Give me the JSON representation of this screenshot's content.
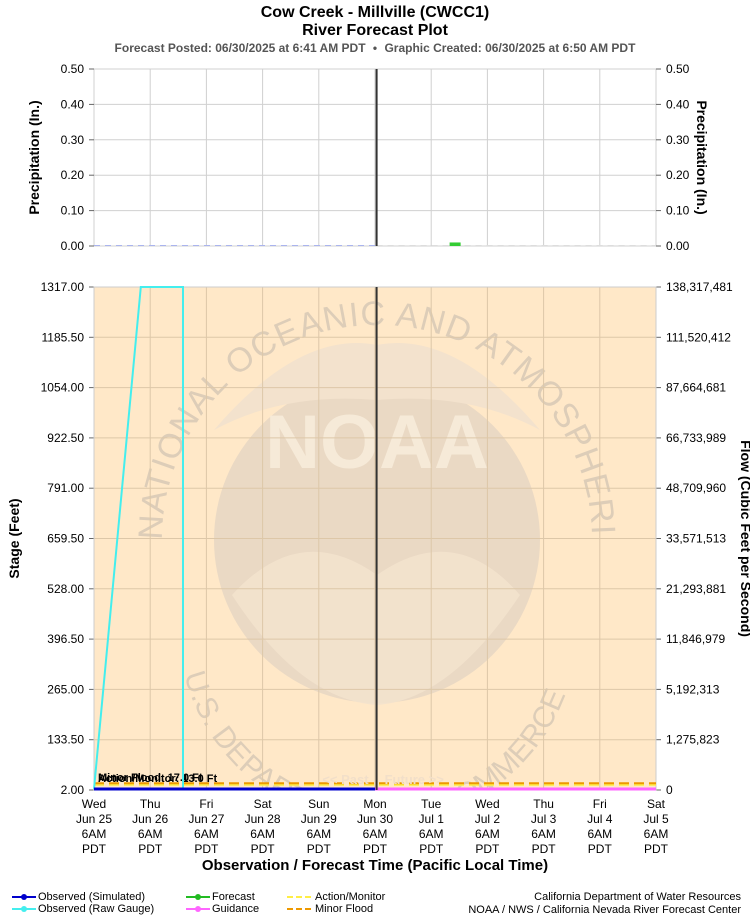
{
  "header": {
    "title": "Cow Creek - Millville (CWCC1)",
    "subtitle": "River Forecast Plot",
    "posted": "Forecast Posted: 06/30/2025 at 6:41 AM PDT",
    "created": "Graphic Created: 06/30/2025 at 6:50 AM PDT",
    "bullet": "•"
  },
  "colors": {
    "plot_bg": "#ffe8c8",
    "grid": "#d0d0d0",
    "observed_simulated": "#0000cc",
    "observed_raw": "#44eeee",
    "forecast": "#22bb22",
    "guidance": "#ff66ff",
    "action_monitor": "#ffee44",
    "minor_flood": "#ee9900",
    "now_line": "#333333",
    "watermark": "#e6d6c3"
  },
  "watermark": {
    "outer_text": "NATIONAL OCEANIC AND ATMOSPHERIC ADMINISTRATION",
    "inner_text": "U.S. DEPARTMENT OF COMMERCE",
    "logo_text": "NOAA"
  },
  "chart_data": [
    {
      "type": "bar",
      "name": "precipitation",
      "ylabel_left": "Precipitation (In.)",
      "ylabel_right": "Precipitation (In.)",
      "ylim": [
        0,
        0.5
      ],
      "yticks": [
        "0.50",
        "0.40",
        "0.30",
        "0.20",
        "0.10",
        "0.00"
      ],
      "yticks_right": [
        "0.50",
        "0.40",
        "0.30",
        "0.20",
        "0.10",
        "0.00"
      ],
      "grid": true,
      "bars": [
        {
          "x": "2025-07-01T16:00",
          "value": 0.01
        }
      ]
    },
    {
      "type": "line",
      "name": "stage-flow",
      "ylabel_left": "Stage (Feet)",
      "ylabel_right": "Flow (Cubic Feet per Second)",
      "xlabel": "Observation / Forecast Time (Pacific Local Time)",
      "ylim": [
        2.0,
        1317.0
      ],
      "yticks": [
        "1317.00",
        "1185.50",
        "1054.00",
        "922.50",
        "791.00",
        "659.50",
        "528.00",
        "396.50",
        "265.00",
        "133.50",
        "2.00"
      ],
      "yticks_right": [
        "138,317,481",
        "111,520,412",
        "87,664,681",
        "66,733,989",
        "48,709,960",
        "33,571,513",
        "21,293,881",
        "11,846,979",
        "5,192,313",
        "1,275,823",
        "0"
      ],
      "x_ticks": [
        {
          "day": "Wed",
          "date": "Jun 25",
          "time": "6AM",
          "tz": "PDT"
        },
        {
          "day": "Thu",
          "date": "Jun 26",
          "time": "6AM",
          "tz": "PDT"
        },
        {
          "day": "Fri",
          "date": "Jun 27",
          "time": "6AM",
          "tz": "PDT"
        },
        {
          "day": "Sat",
          "date": "Jun 28",
          "time": "6AM",
          "tz": "PDT"
        },
        {
          "day": "Sun",
          "date": "Jun 29",
          "time": "6AM",
          "tz": "PDT"
        },
        {
          "day": "Mon",
          "date": "Jun 30",
          "time": "6AM",
          "tz": "PDT"
        },
        {
          "day": "Tue",
          "date": "Jul 1",
          "time": "6AM",
          "tz": "PDT"
        },
        {
          "day": "Wed",
          "date": "Jul 2",
          "time": "6AM",
          "tz": "PDT"
        },
        {
          "day": "Thu",
          "date": "Jul 3",
          "time": "6AM",
          "tz": "PDT"
        },
        {
          "day": "Fri",
          "date": "Jul 4",
          "time": "6AM",
          "tz": "PDT"
        },
        {
          "day": "Sat",
          "date": "Jul 5",
          "time": "6AM",
          "tz": "PDT"
        }
      ],
      "now": "2025-06-30T06:41",
      "past_label": "<< Past",
      "future_label": "Future >>",
      "thresholds": [
        {
          "label": "Action/Monitor",
          "stage": 13.0,
          "text": ""
        },
        {
          "label": "Minor Flood",
          "stage": 17.0,
          "text": "Minor Flood: 17.0 Ft"
        }
      ],
      "threshold_overlap_text": "Action/Monitor: 13.0 Ft",
      "series": [
        {
          "name": "Observed (Raw Gauge)",
          "points": [
            {
              "x": "2025-06-25T06:00",
              "y": 2.0
            },
            {
              "x": "2025-06-26T02:00",
              "y": 1317.0
            },
            {
              "x": "2025-06-26T20:00",
              "y": 1317.0
            },
            {
              "x": "2025-06-26T20:00",
              "y": 2.0
            }
          ]
        },
        {
          "name": "Observed (Simulated)",
          "points": [
            {
              "x": "2025-06-25T06:00",
              "y": 2.0
            },
            {
              "x": "2025-06-30T06:00",
              "y": 2.0
            }
          ]
        },
        {
          "name": "Guidance",
          "points": [
            {
              "x": "2025-06-30T06:00",
              "y": 2.0
            },
            {
              "x": "2025-07-05T06:00",
              "y": 2.0
            }
          ]
        }
      ]
    }
  ],
  "legend": {
    "items": [
      {
        "label": "Observed (Simulated)",
        "key": "observed_simulated",
        "style": "line-dot"
      },
      {
        "label": "Observed (Raw Gauge)",
        "key": "observed_raw",
        "style": "line-dot"
      },
      {
        "label": "Forecast",
        "key": "forecast",
        "style": "line-dot"
      },
      {
        "label": "Guidance",
        "key": "guidance",
        "style": "line-dot"
      },
      {
        "label": "Action/Monitor",
        "key": "action_monitor",
        "style": "dash"
      },
      {
        "label": "Minor Flood",
        "key": "minor_flood",
        "style": "dash"
      }
    ]
  },
  "footer": {
    "agency1": "California Department of Water Resources",
    "agency2": "NOAA / NWS / California Nevada River Forecast Center"
  }
}
